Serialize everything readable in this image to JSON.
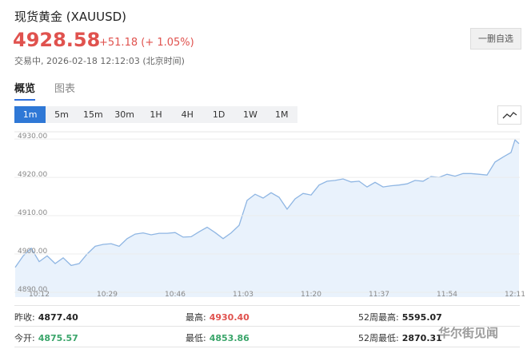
{
  "header": {
    "title": "现货黄金 (XAUUSD)",
    "price": "4928.58",
    "change": "+51.18 (+ 1.05%)",
    "status": "交易中, 2026-02-18 12:12:03 (北京时间)",
    "button": "一删自选"
  },
  "tabs": [
    "概览",
    "图表"
  ],
  "intervals": [
    "1m",
    "5m",
    "15m",
    "30m",
    "1H",
    "4H",
    "1D",
    "1W",
    "1M"
  ],
  "chart_data": {
    "type": "area",
    "color": "#8fb6e3",
    "fill": "#e9f2fc",
    "x": [
      6,
      8,
      10,
      12,
      14,
      16,
      18,
      20,
      22,
      24,
      26,
      28,
      30,
      32,
      34,
      36,
      38,
      40,
      42,
      44,
      46,
      48,
      50,
      52,
      54,
      56,
      58,
      60,
      62,
      64,
      66,
      68,
      70,
      72,
      74,
      76,
      78,
      80,
      82,
      84,
      86,
      88,
      90,
      92,
      94,
      96,
      98,
      100,
      102,
      104,
      106,
      108,
      110,
      112,
      114,
      116,
      118,
      120,
      122,
      124,
      126,
      128,
      130,
      131,
      132
    ],
    "values": [
      4896.5,
      4899.5,
      4901.5,
      4898,
      4899.5,
      4897.5,
      4899,
      4897,
      4897.5,
      4900,
      4902,
      4902.5,
      4902.7,
      4902,
      4904,
      4905.2,
      4905.5,
      4905,
      4905.4,
      4905.4,
      4905.6,
      4904.4,
      4904.5,
      4905.8,
      4907,
      4905.6,
      4904,
      4905.5,
      4907.5,
      4914,
      4915.6,
      4914.6,
      4916,
      4914.8,
      4911.7,
      4914.4,
      4915.8,
      4915.4,
      4918,
      4919,
      4919.2,
      4919.6,
      4918.8,
      4919,
      4917.5,
      4918.7,
      4917.5,
      4917.8,
      4918,
      4918.3,
      4919.2,
      4919,
      4920.2,
      4920,
      4920.8,
      4920.3,
      4921,
      4921,
      4920.8,
      4920.6,
      4924,
      4925.3,
      4926.5,
      4929.8,
      4928.8
    ],
    "xlim": [
      5.8,
      132.2
    ],
    "xticks": [
      {
        "value": 12,
        "label": "10:12"
      },
      {
        "value": 29,
        "label": "10:29"
      },
      {
        "value": 46,
        "label": "10:46"
      },
      {
        "value": 63,
        "label": "11:03"
      },
      {
        "value": 80,
        "label": "11:20"
      },
      {
        "value": 97,
        "label": "11:37"
      },
      {
        "value": 114,
        "label": "11:54"
      },
      {
        "value": 131,
        "label": "12:11"
      }
    ],
    "ylim": [
      4888.75,
      4931.9
    ],
    "yticks": [
      {
        "value": 4890,
        "label": "4890.00"
      },
      {
        "value": 4900,
        "label": "4900.00"
      },
      {
        "value": 4910,
        "label": "4910.00"
      },
      {
        "value": 4920,
        "label": "4920.00"
      },
      {
        "value": 4930,
        "label": "4930.00"
      }
    ],
    "grid": true
  },
  "stats": [
    {
      "label": "昨收:",
      "value": "4877.40"
    },
    {
      "label": "最高:",
      "value": "4930.40"
    },
    {
      "label": "52周最高:",
      "value": "5595.07"
    },
    {
      "label": "今开:",
      "value": "4875.57"
    },
    {
      "label": "最低:",
      "value": "4853.86"
    },
    {
      "label": "52周最低:",
      "value": "2870.31"
    }
  ],
  "watermark": "华尔街见闻"
}
